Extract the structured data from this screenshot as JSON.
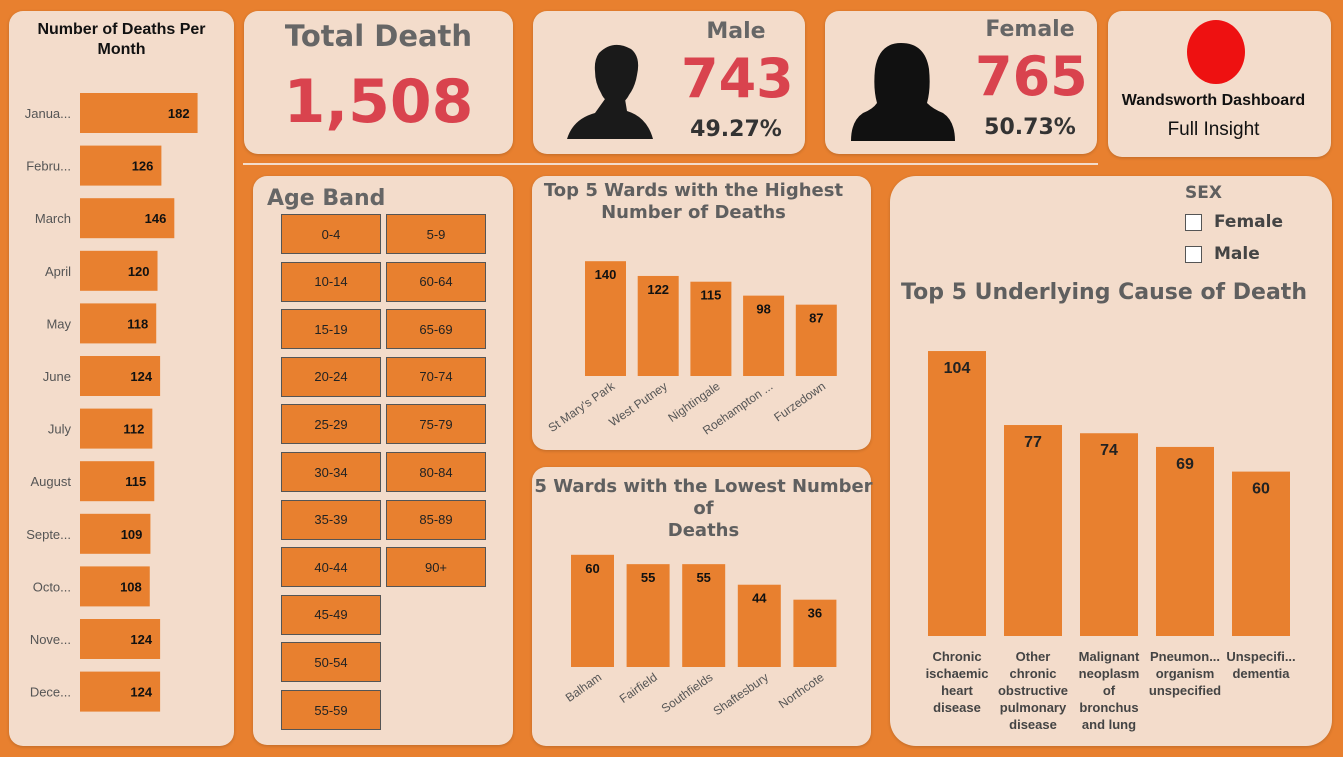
{
  "colors": {
    "background": "#e8802f",
    "card": "#f3dccb",
    "bar": "#e8802f",
    "accent_red": "#d9434e",
    "header_gray": "#5f5f5f"
  },
  "monthly": {
    "title": "Number of Deaths Per Month",
    "chart_data": {
      "type": "bar",
      "orientation": "horizontal",
      "categories": [
        "Janua...",
        "Febru...",
        "March",
        "April",
        "May",
        "June",
        "July",
        "August",
        "Septe...",
        "Octo...",
        "Nove...",
        "Dece..."
      ],
      "values": [
        182,
        126,
        146,
        120,
        118,
        124,
        112,
        115,
        109,
        108,
        124,
        124
      ]
    }
  },
  "total": {
    "title": "Total Death",
    "value": "1,508"
  },
  "male": {
    "title": "Male",
    "value": "743",
    "pct": "49.27%",
    "icon": "male-silhouette-icon"
  },
  "female": {
    "title": "Female",
    "value": "765",
    "pct": "50.73%",
    "icon": "female-silhouette-icon"
  },
  "brand": {
    "title": "Wandsworth Dashboard",
    "subtitle": "Full Insight",
    "logo_color": "#ee1111"
  },
  "age_band": {
    "title": "Age Band",
    "col1": [
      "0-4",
      "10-14",
      "15-19",
      "20-24",
      "25-29",
      "30-34",
      "35-39",
      "40-44",
      "45-49",
      "50-54",
      "55-59"
    ],
    "col2": [
      "5-9",
      "60-64",
      "65-69",
      "70-74",
      "75-79",
      "80-84",
      "85-89",
      "90+"
    ]
  },
  "top_wards": {
    "title_line1": "Top 5 Wards with the Highest",
    "title_line2": "Number of Deaths",
    "chart_data": {
      "type": "bar",
      "categories": [
        "St Mary's Park",
        "West Putney",
        "Nightingale",
        "Roehampton ...",
        "Furzedown"
      ],
      "values": [
        140,
        122,
        115,
        98,
        87
      ]
    }
  },
  "low_wards": {
    "title_line1": "5 Wards with the Lowest Number of",
    "title_line2": "Deaths",
    "chart_data": {
      "type": "bar",
      "categories": [
        "Balham",
        "Fairfield",
        "Southfields",
        "Shaftesbury",
        "Northcote"
      ],
      "values": [
        60,
        55,
        55,
        44,
        36
      ]
    }
  },
  "sex_filter": {
    "title": "SEX",
    "options": [
      "Female",
      "Male"
    ]
  },
  "causes": {
    "title": "Top 5 Underlying Cause of Death",
    "chart_data": {
      "type": "bar",
      "categories": [
        "Chronic ischaemic heart disease",
        "Other chronic obstructive pulmonary disease",
        "Malignant neoplasm of bronchus and lung",
        "Pneumon... organism unspecified",
        "Unspecifi... dementia"
      ],
      "label_lines": [
        [
          "Chronic",
          "ischaemic",
          "heart",
          "disease"
        ],
        [
          "Other",
          "chronic",
          "obstructive",
          "pulmonary",
          "disease"
        ],
        [
          "Malignant",
          "neoplasm",
          "of",
          "bronchus",
          "and lung"
        ],
        [
          "Pneumon...",
          "organism",
          "unspecified"
        ],
        [
          "Unspecifi...",
          "dementia"
        ]
      ],
      "values": [
        104,
        77,
        74,
        69,
        60
      ]
    }
  }
}
